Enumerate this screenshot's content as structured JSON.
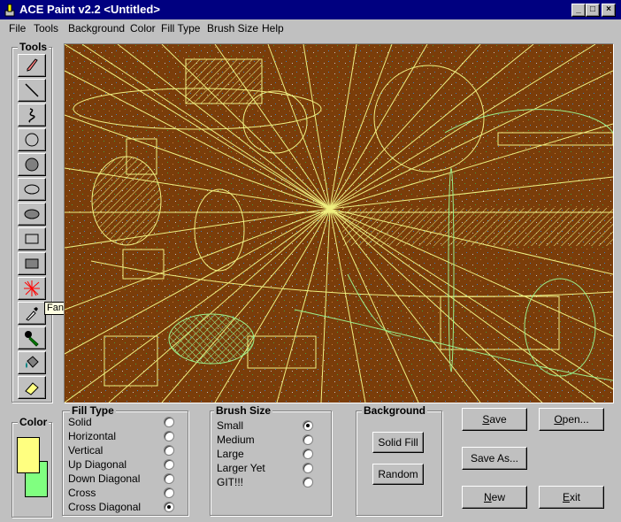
{
  "window": {
    "title": "ACE Paint v2.2 <Untitled>",
    "controls": {
      "minimize": "_",
      "maximize": "□",
      "close": "×"
    }
  },
  "menu": [
    "File",
    "Tools",
    "Background",
    "Color",
    "Fill Type",
    "Brush Size",
    "Help"
  ],
  "tools": {
    "label": "Tools",
    "items": [
      {
        "name": "pencil",
        "icon": "pencil-icon"
      },
      {
        "name": "line",
        "icon": "line-icon"
      },
      {
        "name": "curve",
        "icon": "curve-icon"
      },
      {
        "name": "circle",
        "icon": "circle-outline-icon"
      },
      {
        "name": "filled-circle",
        "icon": "circle-filled-icon"
      },
      {
        "name": "ellipse",
        "icon": "ellipse-outline-icon"
      },
      {
        "name": "filled-ellipse",
        "icon": "ellipse-filled-icon"
      },
      {
        "name": "rectangle",
        "icon": "rectangle-outline-icon"
      },
      {
        "name": "filled-rectangle",
        "icon": "rectangle-filled-icon"
      },
      {
        "name": "fan",
        "icon": "fan-icon"
      },
      {
        "name": "eyedropper",
        "icon": "eyedropper-icon"
      },
      {
        "name": "paint-brush",
        "icon": "paintbrush-icon"
      },
      {
        "name": "paint-bucket",
        "icon": "paint-bucket-icon"
      },
      {
        "name": "eraser",
        "icon": "eraser-icon"
      }
    ],
    "tooltip": "Fan"
  },
  "canvas": {
    "background": "#7a3d0a",
    "stroke": "#f0f080",
    "stroke2": "#9cf08c"
  },
  "color": {
    "label": "Color",
    "foreground": "#ffff80",
    "background": "#80ff80"
  },
  "fill_type": {
    "label": "Fill Type",
    "options": [
      "Solid",
      "Horizontal",
      "Vertical",
      "Up Diagonal",
      "Down Diagonal",
      "Cross",
      "Cross Diagonal"
    ],
    "selected": "Cross Diagonal"
  },
  "brush_size": {
    "label": "Brush Size",
    "options": [
      "Small",
      "Medium",
      "Large",
      "Larger Yet",
      "GIT!!!"
    ],
    "selected": "Small"
  },
  "background": {
    "label": "Background",
    "solid_fill": "Solid Fill",
    "random": "Random"
  },
  "buttons": {
    "save": "Save",
    "open": "Open...",
    "save_as": "Save As...",
    "new": "New",
    "exit": "Exit"
  }
}
